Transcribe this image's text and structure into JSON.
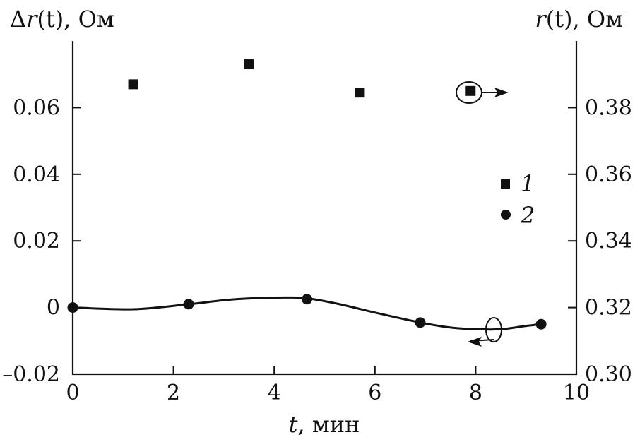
{
  "chart_data": {
    "type": "scatter",
    "left_axis_title": {
      "prefix": "Δ",
      "var": "r",
      "arg": "(t)",
      "unit": ", Ом"
    },
    "right_axis_title": {
      "var": "r",
      "arg": "(t)",
      "unit": ", Ом"
    },
    "x_axis_title": {
      "var": "t",
      "unit": ", мин"
    },
    "xlim": [
      0,
      10
    ],
    "ylim_left": [
      -0.02,
      0.08
    ],
    "ylim_right": [
      0.3,
      0.4
    ],
    "x_ticks": [
      0,
      2,
      4,
      6,
      8,
      10
    ],
    "x_tick_labels": [
      "0",
      "2",
      "4",
      "6",
      "8",
      "10"
    ],
    "y_left_ticks": [
      -0.02,
      0,
      0.02,
      0.04,
      0.06
    ],
    "y_left_tick_labels": [
      "–0.02",
      "0",
      "0.02",
      "0.04",
      "0.06"
    ],
    "y_right_ticks": [
      0.3,
      0.32,
      0.34,
      0.36,
      0.38
    ],
    "y_right_tick_labels": [
      "0.30",
      "0.32",
      "0.34",
      "0.36",
      "0.38"
    ],
    "series": [
      {
        "name": "1",
        "marker": "square",
        "axis": "right",
        "x": [
          1.2,
          3.5,
          5.7,
          7.9
        ],
        "y": [
          0.387,
          0.393,
          0.3845,
          0.385
        ]
      },
      {
        "name": "2",
        "marker": "circle",
        "axis": "left",
        "x": [
          0,
          2.3,
          4.65,
          6.9,
          9.3
        ],
        "y": [
          0.0,
          0.001,
          0.0025,
          -0.0045,
          -0.005
        ]
      }
    ],
    "curve": {
      "axis": "left",
      "x": [
        0,
        1.2,
        2.3,
        3.0,
        3.6,
        4.2,
        4.65,
        5.3,
        6.0,
        6.9,
        7.5,
        8.0,
        8.5,
        9.0,
        9.3
      ],
      "y": [
        0.0,
        -0.0005,
        0.001,
        0.0022,
        0.0028,
        0.003,
        0.0028,
        0.001,
        -0.0015,
        -0.0045,
        -0.006,
        -0.0065,
        -0.0065,
        -0.0055,
        -0.005
      ]
    },
    "grid": false,
    "legend_position": "right-middle"
  }
}
